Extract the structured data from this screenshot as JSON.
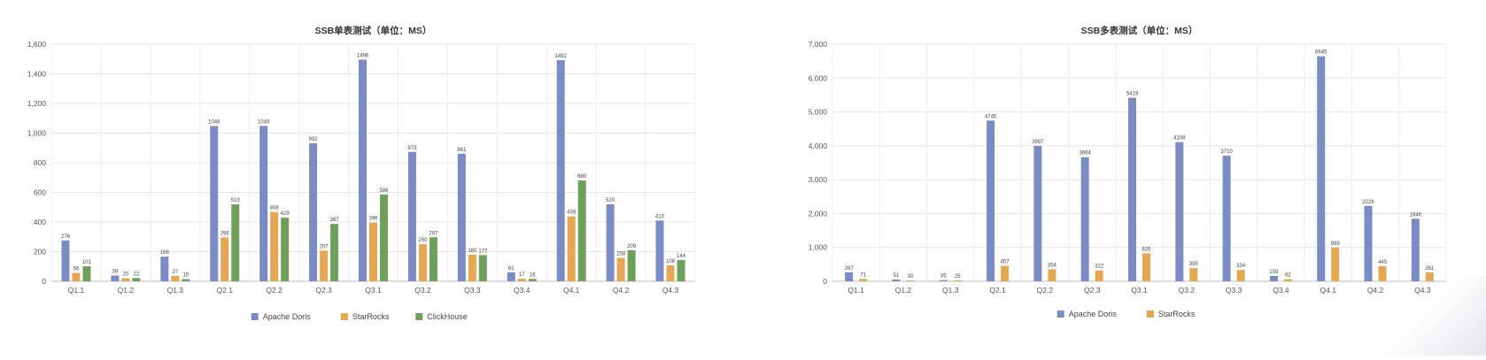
{
  "chart_data": [
    {
      "type": "bar",
      "title": "SSB单表测试（单位：MS）",
      "categories": [
        "Q1.1",
        "Q1.2",
        "Q1.3",
        "Q2.1",
        "Q2.2",
        "Q2.3",
        "Q3.1",
        "Q3.2",
        "Q3.3",
        "Q3.4",
        "Q4.1",
        "Q4.2",
        "Q4.3"
      ],
      "series": [
        {
          "name": "Apache Doris",
          "color": "#7b8cc4",
          "values": [
            276,
            39,
            166,
            1048,
            1049,
            932,
            1496,
            873,
            861,
            61,
            1492,
            520,
            410
          ]
        },
        {
          "name": "StarRocks",
          "color": "#e5a752",
          "values": [
            56,
            20,
            37,
            296,
            468,
            207,
            396,
            250,
            180,
            17,
            438,
            158,
            108
          ]
        },
        {
          "name": "ClickHouse",
          "color": "#6fa05b",
          "values": [
            101,
            22,
            15,
            519,
            429,
            387,
            586,
            297,
            177,
            16,
            680,
            209,
            144
          ]
        }
      ],
      "y_ticks": [
        "0",
        "200",
        "400",
        "600",
        "800",
        "1,000",
        "1,200",
        "1,400",
        "1,600"
      ],
      "ylim": [
        0,
        1600
      ],
      "grid": true,
      "legend": "bottom-center"
    },
    {
      "type": "bar",
      "title": "SSB多表测试（单位：MS）",
      "categories": [
        "Q1.1",
        "Q1.2",
        "Q1.3",
        "Q2.1",
        "Q2.2",
        "Q2.3",
        "Q3.1",
        "Q3.2",
        "Q3.3",
        "Q3.4",
        "Q4.1",
        "Q4.2",
        "Q4.3"
      ],
      "series": [
        {
          "name": "Apache Doris",
          "color": "#7b8cc4",
          "values": [
            267,
            51,
            35,
            4745,
            3997,
            3664,
            5419,
            4108,
            3710,
            159,
            6645,
            2226,
            1846
          ]
        },
        {
          "name": "StarRocks",
          "color": "#e5a752",
          "values": [
            71,
            30,
            25,
            457,
            354,
            322,
            826,
            395,
            334,
            62,
            999,
            445,
            261
          ]
        }
      ],
      "y_ticks": [
        "0",
        "1,000",
        "2,000",
        "3,000",
        "4,000",
        "5,000",
        "6,000",
        "7,000"
      ],
      "ylim": [
        0,
        7000
      ],
      "grid": true,
      "legend": "bottom-center"
    }
  ]
}
